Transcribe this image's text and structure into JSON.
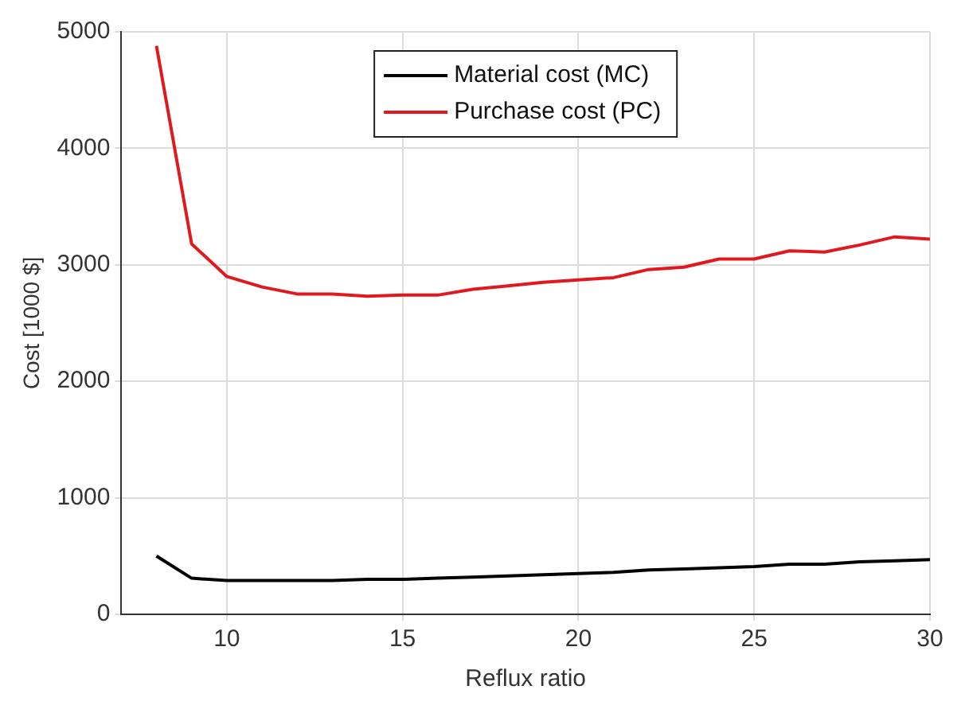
{
  "chart_data": {
    "type": "line",
    "xlabel": "Reflux ratio",
    "ylabel": "Cost [1000 $]",
    "x": [
      8,
      9,
      10,
      11,
      12,
      13,
      14,
      15,
      16,
      17,
      18,
      19,
      20,
      21,
      22,
      23,
      24,
      25,
      26,
      27,
      28,
      29,
      30
    ],
    "series": [
      {
        "name": "Material cost (MC)",
        "color": "#000000",
        "values": [
          500,
          310,
          290,
          290,
          290,
          290,
          300,
          300,
          310,
          320,
          330,
          340,
          350,
          360,
          380,
          390,
          400,
          410,
          430,
          430,
          450,
          460,
          470
        ]
      },
      {
        "name": "Purchase cost (PC)",
        "color": "#e0191e",
        "values": [
          4880,
          3180,
          2900,
          2810,
          2750,
          2750,
          2730,
          2740,
          2740,
          2790,
          2820,
          2850,
          2870,
          2890,
          2960,
          2980,
          3050,
          3050,
          3120,
          3110,
          3170,
          3240,
          3220
        ]
      }
    ],
    "xlim": [
      7,
      30
    ],
    "xticks": [
      10,
      15,
      20,
      25,
      30
    ],
    "ylim": [
      0,
      5000
    ],
    "yticks": [
      0,
      1000,
      2000,
      3000,
      4000,
      5000
    ],
    "grid": true,
    "legend": "top",
    "marker": "none",
    "line_style": "solid"
  }
}
